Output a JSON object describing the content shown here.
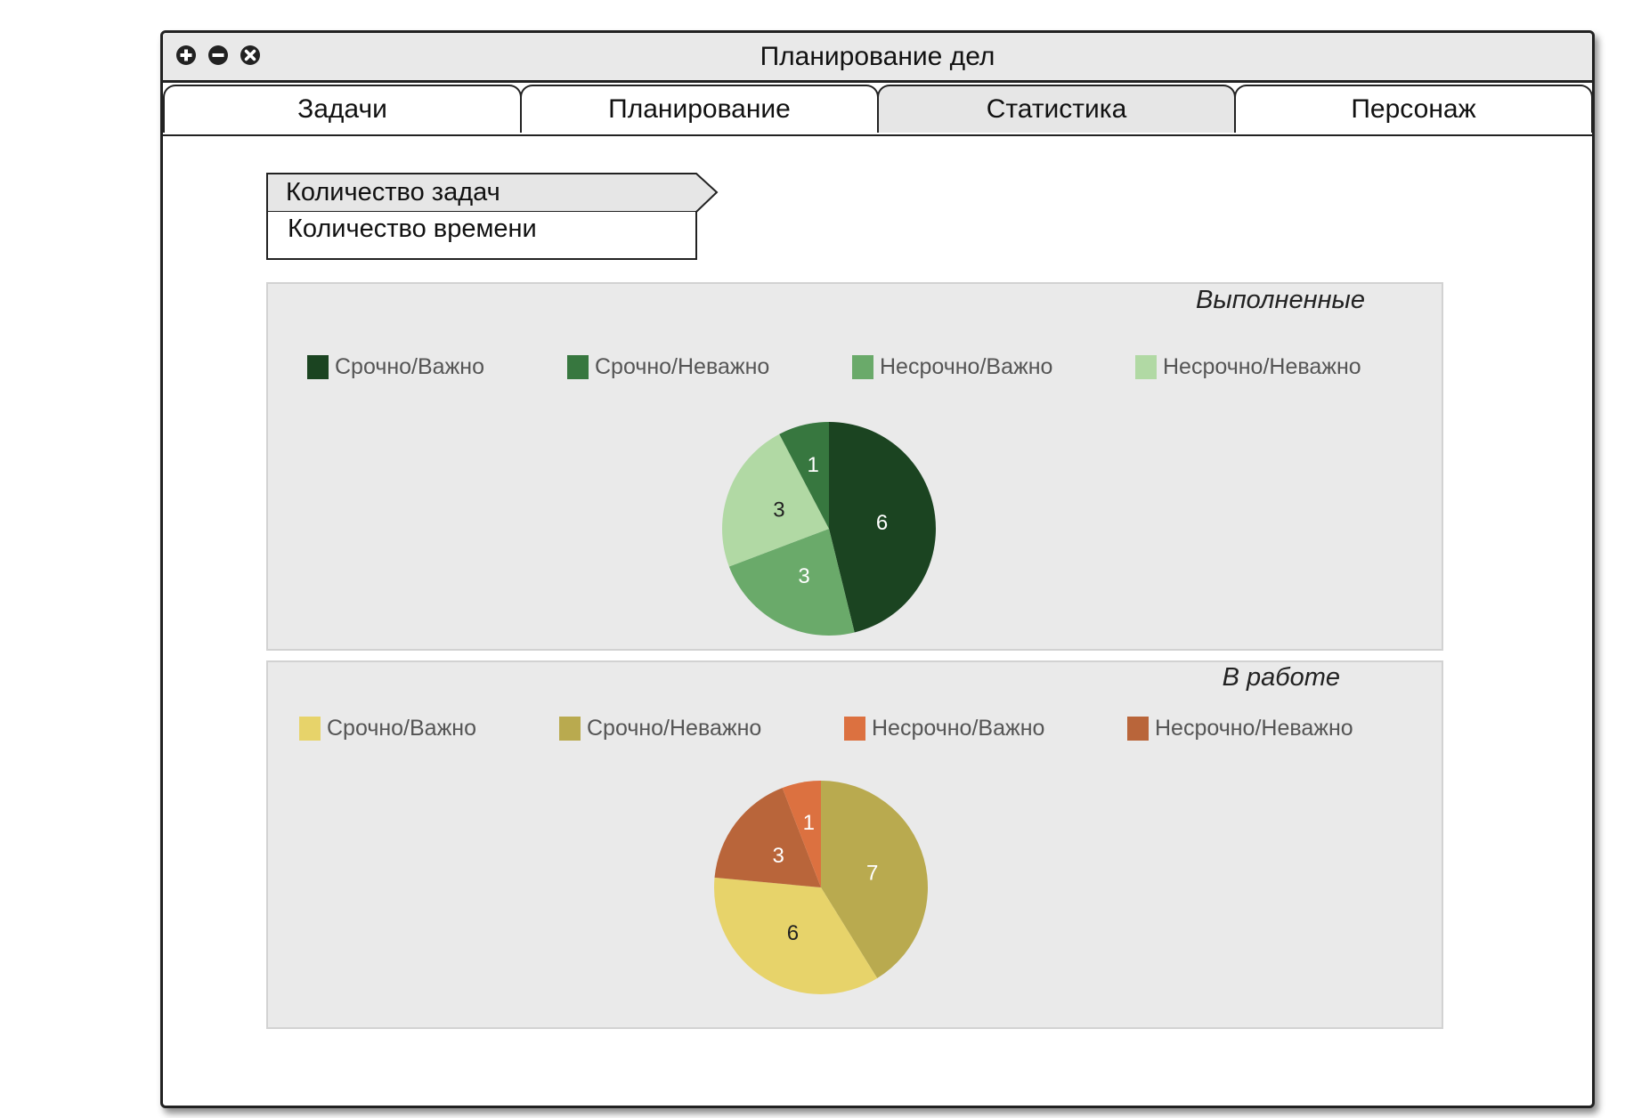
{
  "window": {
    "title": "Планирование дел"
  },
  "tabs": [
    {
      "label": "Задачи",
      "active": false
    },
    {
      "label": "Планирование",
      "active": false
    },
    {
      "label": "Статистика",
      "active": true
    },
    {
      "label": "Персонаж",
      "active": false
    }
  ],
  "metric_list": {
    "items": [
      {
        "label": "Количество задач",
        "selected": true
      },
      {
        "label": "Количество времени",
        "selected": false
      }
    ]
  },
  "icons": {
    "window_buttons": [
      "plus-circle-icon",
      "minus-circle-icon",
      "close-circle-icon"
    ]
  },
  "panels": [
    {
      "title": "Выполненные",
      "legend": [
        {
          "label": "Срочно/Важно",
          "color": "#1b4421"
        },
        {
          "label": "Срочно/Неважно",
          "color": "#37773f"
        },
        {
          "label": "Несрочно/Важно",
          "color": "#6aaa6a"
        },
        {
          "label": "Несрочно/Неважно",
          "color": "#b1d9a4"
        }
      ]
    },
    {
      "title": "В работе",
      "legend": [
        {
          "label": "Срочно/Важно",
          "color": "#e7d36a"
        },
        {
          "label": "Срочно/Неважно",
          "color": "#b9aa4f"
        },
        {
          "label": "Несрочно/Важно",
          "color": "#dc7140"
        },
        {
          "label": "Несрочно/Неважно",
          "color": "#b9653a"
        }
      ]
    }
  ],
  "chart_data": [
    {
      "type": "pie",
      "title": "Выполненные",
      "categories": [
        "Срочно/Важно",
        "Несрочно/Важно",
        "Несрочно/Неважно",
        "Срочно/Неважно"
      ],
      "values": [
        6,
        3,
        3,
        1
      ],
      "colors": [
        "#1b4421",
        "#6aaa6a",
        "#b1d9a4",
        "#37773f"
      ],
      "label_colors": [
        "#ffffff",
        "#ffffff",
        "#222222",
        "#ffffff"
      ]
    },
    {
      "type": "pie",
      "title": "В работе",
      "categories": [
        "Срочно/Неважно",
        "Срочно/Важно",
        "Несрочно/Неважно",
        "Несрочно/Важно"
      ],
      "values": [
        7,
        6,
        3,
        1
      ],
      "colors": [
        "#b9aa4f",
        "#e7d36a",
        "#b9653a",
        "#dc7140"
      ],
      "label_colors": [
        "#ffffff",
        "#222222",
        "#ffffff",
        "#ffffff"
      ]
    }
  ]
}
